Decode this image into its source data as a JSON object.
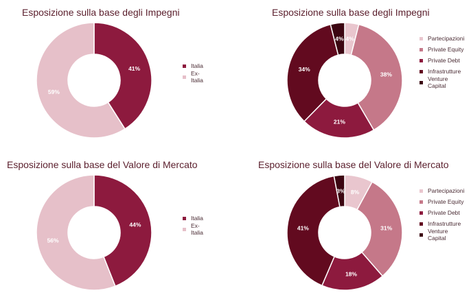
{
  "chart_data": [
    {
      "type": "donut",
      "title": "Esposizione sulla base degli Impegni",
      "series": [
        {
          "name": "Italia",
          "value": 41,
          "label": "41%",
          "color": "#8d1a3e"
        },
        {
          "name": "Ex-Italia",
          "value": 59,
          "label": "59%",
          "color": "#e6c0c9"
        }
      ],
      "legend_position": "right"
    },
    {
      "type": "donut",
      "title": "Esposizione sulla base degli Impegni",
      "series": [
        {
          "name": "Partecipazioni",
          "value": 4,
          "label": "4%",
          "color": "#e9c6ce"
        },
        {
          "name": "Private Equity",
          "value": 38,
          "label": "38%",
          "color": "#c57889"
        },
        {
          "name": "Private Debt",
          "value": 21,
          "label": "21%",
          "color": "#8d1a3e"
        },
        {
          "name": "Infrastrutture",
          "value": 34,
          "label": "34%",
          "color": "#620a1f"
        },
        {
          "name": "Venture Capital",
          "value": 4,
          "label": "4%",
          "color": "#3c0612"
        }
      ],
      "legend_position": "right"
    },
    {
      "type": "donut",
      "title": "Esposizione sulla base del Valore di Mercato",
      "series": [
        {
          "name": "Italia",
          "value": 44,
          "label": "44%",
          "color": "#8d1a3e"
        },
        {
          "name": "Ex-Italia",
          "value": 56,
          "label": "56%",
          "color": "#e6c0c9"
        }
      ],
      "legend_position": "right"
    },
    {
      "type": "donut",
      "title": "Esposizione sulla base del Valore di Mercato",
      "series": [
        {
          "name": "Partecipazioni",
          "value": 8,
          "label": "8%",
          "color": "#e9c6ce"
        },
        {
          "name": "Private Equity",
          "value": 31,
          "label": "31%",
          "color": "#c57889"
        },
        {
          "name": "Private Debt",
          "value": 18,
          "label": "18%",
          "color": "#8d1a3e"
        },
        {
          "name": "Infrastrutture",
          "value": 41,
          "label": "41%",
          "color": "#620a1f"
        },
        {
          "name": "Venture Capital",
          "value": 3,
          "label": "3%",
          "color": "#3c0612"
        }
      ],
      "legend_position": "right"
    }
  ]
}
